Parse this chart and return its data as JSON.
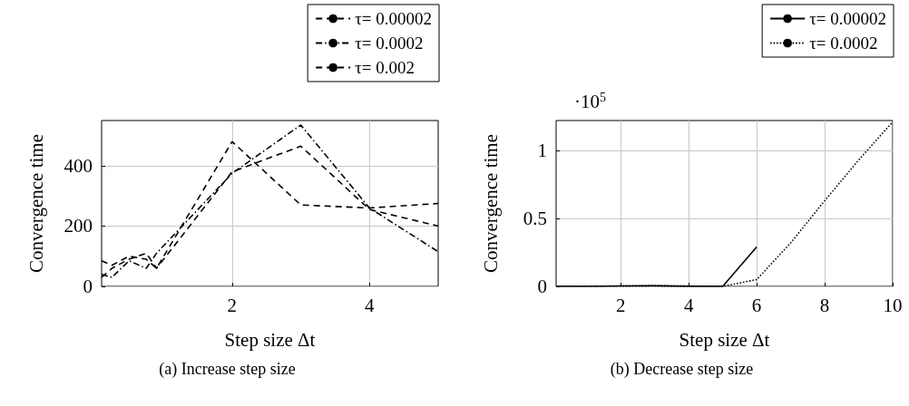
{
  "chart_data": [
    {
      "type": "line",
      "xlabel": "Step size Δt",
      "ylabel": "Convergence time",
      "xlim": [
        0.1,
        5
      ],
      "xticks": [
        2,
        4
      ],
      "ylim": [
        0,
        550
      ],
      "yticks": [
        0,
        200,
        400
      ],
      "grid": true,
      "legend": "top right",
      "marker": "none",
      "annotations": [
        "(a) Increase step size"
      ],
      "series": [
        {
          "name": "τ= 0.00002",
          "color": "#000000",
          "line_style": "dashed",
          "x": [
            0.1,
            0.25,
            0.5,
            0.75,
            0.9,
            2,
            3,
            4,
            5
          ],
          "values": [
            85,
            70,
            100,
            90,
            60,
            480,
            270,
            260,
            275
          ]
        },
        {
          "name": "τ= 0.0002",
          "color": "#000000",
          "line_style": "dashdot",
          "x": [
            0.1,
            0.25,
            0.5,
            0.75,
            0.9,
            2,
            3,
            4,
            5
          ],
          "values": [
            40,
            30,
            85,
            60,
            110,
            375,
            535,
            260,
            115
          ]
        },
        {
          "name": "τ= 0.002",
          "color": "#000000",
          "line_style": "dashed",
          "x": [
            0.1,
            0.25,
            0.5,
            0.75,
            0.9,
            2,
            3,
            4,
            5
          ],
          "values": [
            30,
            60,
            90,
            110,
            60,
            380,
            465,
            255,
            200
          ]
        }
      ]
    },
    {
      "type": "line",
      "xlabel": "Step size Δt",
      "ylabel": "Convergence time",
      "xlim": [
        0.1,
        10
      ],
      "xticks": [
        2,
        4,
        6,
        8,
        10
      ],
      "ylim": [
        0,
        1.22
      ],
      "yticks": [
        0,
        0.5,
        1
      ],
      "grid": true,
      "legend": "top right",
      "marker": "none",
      "annotations": [
        "·10$^{5}$",
        "(b) Decrease step size"
      ],
      "series": [
        {
          "name": "τ= 0.00002",
          "color": "#000000",
          "line_style": "solid",
          "x": [
            0.1,
            1,
            2,
            3,
            4,
            5,
            6
          ],
          "values": [
            0,
            0,
            0.003,
            0.004,
            0.001,
            0,
            0.29
          ]
        },
        {
          "name": "τ= 0.0002",
          "color": "#000000",
          "line_style": "dotted",
          "x": [
            0.1,
            1,
            2,
            3,
            4,
            5,
            6,
            7,
            8,
            9,
            10
          ],
          "values": [
            0,
            0,
            0.002,
            0.005,
            0.002,
            0,
            0.05,
            0.32,
            0.63,
            0.93,
            1.21
          ]
        }
      ]
    }
  ]
}
